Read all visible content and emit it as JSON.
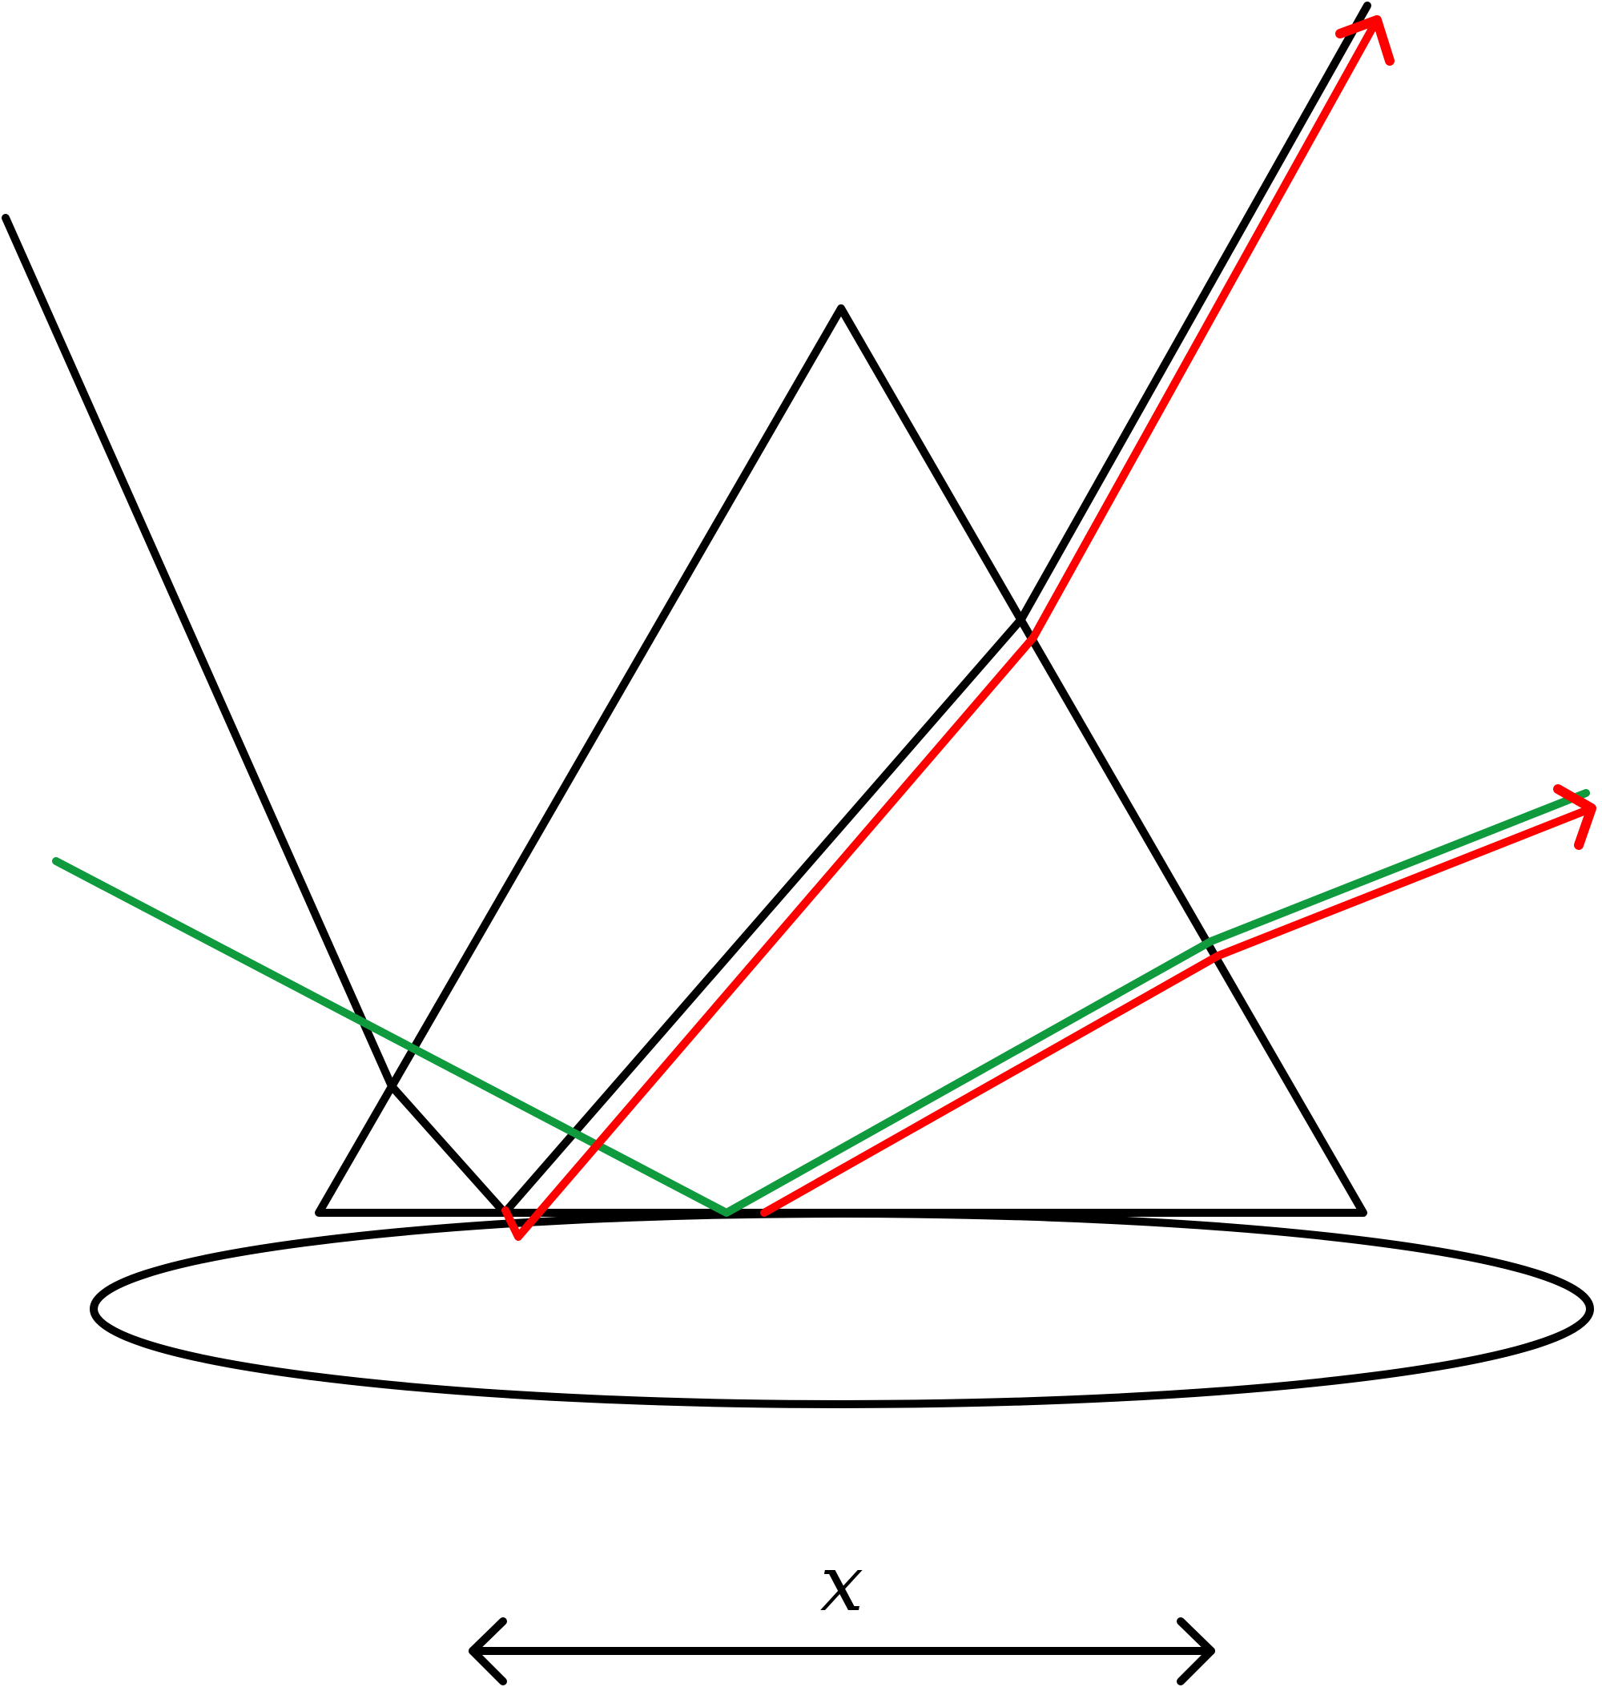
{
  "colors": {
    "outline": "#000000",
    "reflected_ray": "#ff0000",
    "ray_path": "#0e9a3d",
    "background": "#ffffff"
  },
  "labels": {
    "dimension": "x"
  }
}
